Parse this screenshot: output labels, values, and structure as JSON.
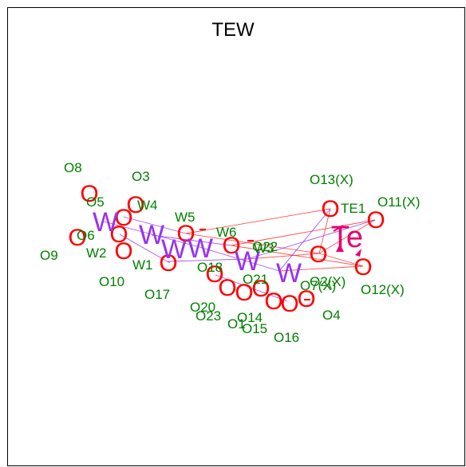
{
  "title": "TEW",
  "colors": {
    "oxygen": "#ff0000",
    "tungsten": "#9933ee",
    "tellurium": "#e6006e",
    "label": "#008000",
    "bond_red": "#ff3333",
    "bond_purple": "#9933ee"
  },
  "atoms": {
    "oxygen_symbol": "O",
    "tungsten_symbol": "W",
    "tellurium_symbol": "Te"
  },
  "labels": [
    "O8",
    "O3",
    "O5",
    "W4",
    "W5",
    "W6",
    "O6",
    "O9",
    "W2",
    "W1",
    "O18",
    "O22",
    "W3",
    "O10",
    "O17",
    "O21",
    "O20",
    "O23",
    "O14",
    "O1",
    "O15",
    "O16",
    "O4",
    "O13(X)",
    "TE1",
    "O11(X)",
    "O2(X)",
    "O7(X)",
    "O12(X)"
  ]
}
